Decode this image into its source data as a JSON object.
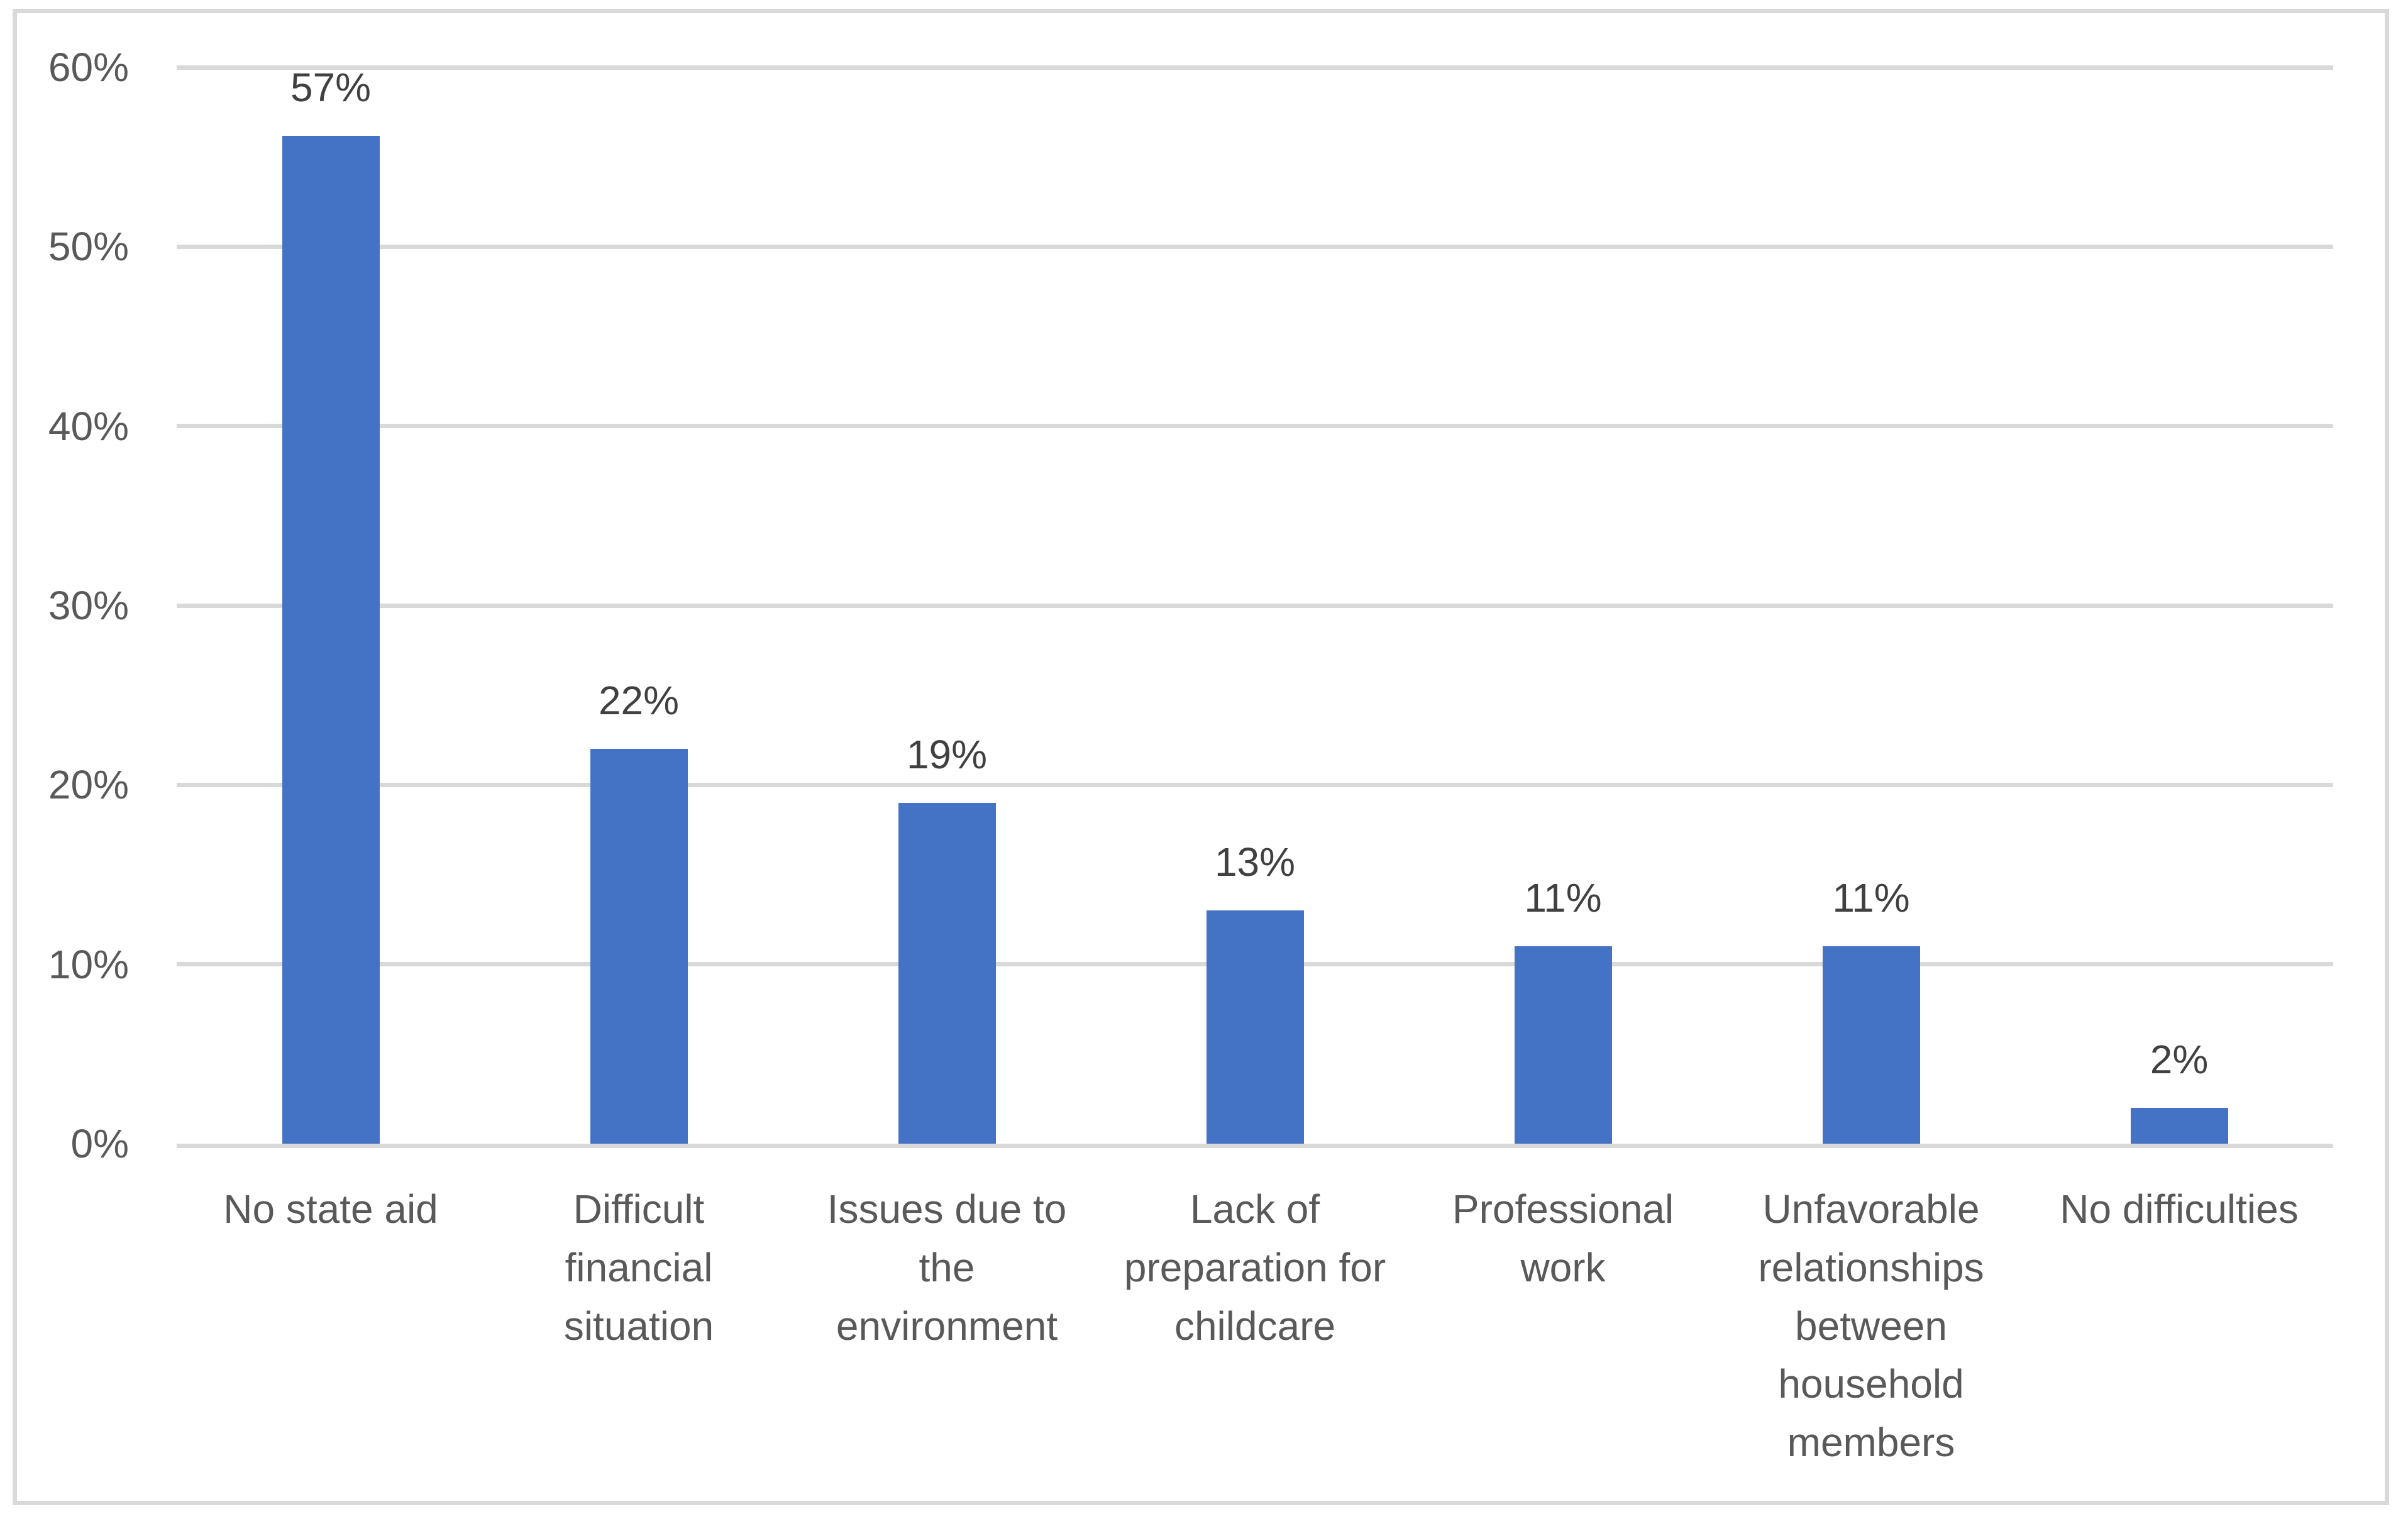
{
  "chart_data": {
    "type": "bar",
    "categories": [
      "No state aid",
      "Difficult financial situation",
      "Issues due to the environment",
      "Lack of preparation for childcare",
      "Professional work",
      "Unfavorable relationships between household members",
      "No difficulties"
    ],
    "values": [
      57,
      22,
      19,
      13,
      11,
      11,
      2
    ],
    "value_labels": [
      "57%",
      "22%",
      "19%",
      "13%",
      "11%",
      "11%",
      "2%"
    ],
    "title": "",
    "xlabel": "",
    "ylabel": "",
    "ylim": [
      0,
      60
    ],
    "yticks": [
      0,
      10,
      20,
      30,
      40,
      50,
      60
    ],
    "ytick_labels": [
      "0%",
      "10%",
      "20%",
      "30%",
      "40%",
      "50%",
      "60%"
    ],
    "grid": "horizontal",
    "legend": "none"
  },
  "bars": [
    {
      "label": "No state aid",
      "value_label": "57%"
    },
    {
      "label": "Difficult\nfinancial\nsituation",
      "value_label": "22%"
    },
    {
      "label": "Issues due to\nthe\nenvironment",
      "value_label": "19%"
    },
    {
      "label": "Lack of\npreparation for\nchildcare",
      "value_label": "13%"
    },
    {
      "label": "Professional\nwork",
      "value_label": "11%"
    },
    {
      "label": "Unfavorable\nrelationships\nbetween\nhousehold\nmembers",
      "value_label": "11%"
    },
    {
      "label": "No difficulties",
      "value_label": "2%"
    }
  ],
  "colors": {
    "bar": "#4472C4",
    "gridline": "#D9D9D9",
    "frame_border": "#D9D9D9",
    "axis_text": "#595959",
    "data_label_text": "#404040",
    "background": "#FFFFFF"
  }
}
